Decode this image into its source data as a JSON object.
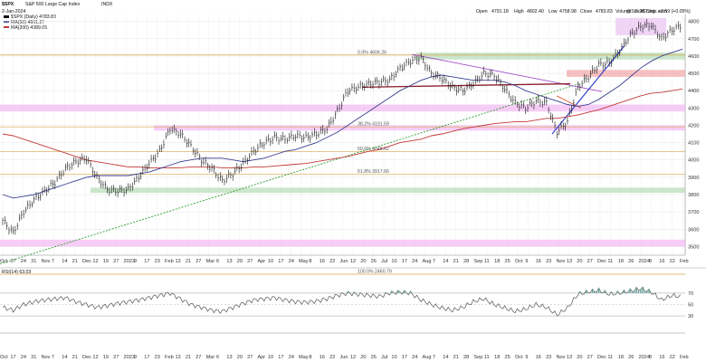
{
  "header": {
    "symbol": "$SPX",
    "name": "S&P 500 Large Cap Index",
    "exchange": "INDX",
    "date": "2-Jan-2024",
    "source": "@StockCharts.com",
    "ohlc": {
      "open_label": "Open",
      "open": "4791.18",
      "high_label": "High",
      "high": "4802.40",
      "low_label": "Low",
      "low": "4758.98",
      "close_label": "Close",
      "close": "4783.83",
      "volume_label": "Volume",
      "volume": "2.2B",
      "chg_label": "Chg",
      "chg": "+2.59 (+0.05%)"
    }
  },
  "legend": {
    "price": "$SPX (Daily) 4783.83",
    "ma50": "MA(50) 4601.27",
    "ma200": "MA(200) 4389.65",
    "rsi": "RSI(14) 63.03"
  },
  "colors": {
    "price": "#111111",
    "ma50": "#3a3f8f",
    "ma200": "#c23a3a",
    "trend": "#2f9e2f",
    "fib": "#d9a64a",
    "magenta_zone": "#f2b8f2",
    "green_zone": "#b7dcb7",
    "red_zone": "#f4a6a6",
    "resistance_purple": "#a04cc8",
    "resistance_maroon": "#8a1f2e",
    "breakout_blue": "#3344cc",
    "rsi_fill": "#6aa7a0"
  },
  "chart_data": {
    "type": "line",
    "title": "$SPX S&P 500 Large Cap Index INDX",
    "x_axis_labels": [
      "Oct",
      "17",
      "24",
      "31",
      "Nov",
      "7",
      "14",
      "21",
      "Dec",
      "12",
      "19",
      "27",
      "2023",
      "9",
      "17",
      "23",
      "Feb",
      "13",
      "21",
      "27",
      "Mar",
      "6",
      "13",
      "20",
      "27",
      "Apr",
      "10",
      "17",
      "24",
      "May",
      "8",
      "16",
      "22",
      "Jun",
      "12",
      "20",
      "26",
      "Jul",
      "10",
      "17",
      "24",
      "Aug",
      "7",
      "14",
      "21",
      "28",
      "Sep",
      "11",
      "18",
      "25",
      "Oct",
      "9",
      "16",
      "23",
      "Nov",
      "13",
      "20",
      "27",
      "Dec",
      "11",
      "18",
      "26",
      "2024",
      "8",
      "16",
      "22",
      "Feb"
    ],
    "ylim": [
      3450,
      4840
    ],
    "y_ticks": [
      {
        "value": 4800,
        "label": "4800"
      },
      {
        "value": 4700,
        "label": "4700"
      },
      {
        "value": 4600,
        "label": "4600"
      },
      {
        "value": 4500,
        "label": "4500"
      },
      {
        "value": 4400,
        "label": "4400"
      },
      {
        "value": 4300,
        "label": "4300"
      },
      {
        "value": 4200,
        "label": "4200"
      },
      {
        "value": 4100,
        "label": "4100"
      },
      {
        "value": 4000,
        "label": "4000"
      },
      {
        "value": 3900,
        "label": "3900"
      },
      {
        "value": 3800,
        "label": "3800"
      },
      {
        "value": 3700,
        "label": "3700"
      },
      {
        "value": 3600,
        "label": "3600"
      },
      {
        "value": 3500,
        "label": "3500"
      }
    ],
    "fib_levels": [
      {
        "value": 4606,
        "label": "0.0% 4606.26"
      },
      {
        "value": 4191,
        "label": "38.2% 4191.59"
      },
      {
        "value": 4048,
        "label": "50.0% 4048.62"
      },
      {
        "value": 3918,
        "label": "61.8% 3917.66"
      },
      {
        "value": 2460,
        "label": "100.0% 2460.79"
      }
    ],
    "series": [
      {
        "name": "$SPX (Daily) 4783.83",
        "values": [
          3650,
          3580,
          3700,
          3770,
          3820,
          3870,
          3950,
          3990,
          4010,
          3900,
          3830,
          3820,
          3830,
          3900,
          3980,
          4050,
          4180,
          4150,
          4080,
          4000,
          3950,
          3880,
          3920,
          3980,
          4050,
          4100,
          4130,
          4120,
          4140,
          4130,
          4150,
          4180,
          4280,
          4400,
          4420,
          4440,
          4450,
          4460,
          4530,
          4570,
          4590,
          4500,
          4470,
          4420,
          4400,
          4440,
          4500,
          4490,
          4410,
          4330,
          4300,
          4340,
          4330,
          4160,
          4220,
          4420,
          4480,
          4550,
          4560,
          4630,
          4720,
          4770,
          4780,
          4700,
          4750,
          4780
        ]
      },
      {
        "name": "MA(50) 4601.27",
        "values": [
          3800,
          3780,
          3790,
          3800,
          3820,
          3840,
          3860,
          3880,
          3900,
          3910,
          3910,
          3910,
          3910,
          3920,
          3930,
          3950,
          3970,
          3990,
          4000,
          4010,
          4010,
          4010,
          4000,
          3990,
          4000,
          4010,
          4030,
          4050,
          4060,
          4080,
          4100,
          4130,
          4160,
          4200,
          4240,
          4280,
          4320,
          4360,
          4400,
          4430,
          4460,
          4480,
          4490,
          4480,
          4470,
          4460,
          4460,
          4460,
          4450,
          4430,
          4400,
          4380,
          4360,
          4340,
          4320,
          4310,
          4320,
          4350,
          4390,
          4430,
          4480,
          4530,
          4570,
          4600,
          4620,
          4640
        ]
      },
      {
        "name": "MA(200) 4389.65",
        "values": [
          4150,
          4140,
          4120,
          4100,
          4080,
          4060,
          4040,
          4020,
          4000,
          3990,
          3980,
          3970,
          3960,
          3960,
          3955,
          3955,
          3955,
          3955,
          3960,
          3960,
          3960,
          3955,
          3955,
          3955,
          3960,
          3960,
          3965,
          3970,
          3975,
          3980,
          3990,
          4000,
          4010,
          4020,
          4035,
          4050,
          4060,
          4080,
          4100,
          4110,
          4120,
          4140,
          4150,
          4165,
          4180,
          4190,
          4200,
          4210,
          4215,
          4220,
          4220,
          4230,
          4240,
          4240,
          4250,
          4260,
          4275,
          4290,
          4310,
          4330,
          4350,
          4370,
          4385,
          4390,
          4400,
          4410
        ]
      }
    ],
    "rsi": {
      "name": "RSI(14) 63.03",
      "ylim": [
        0,
        100
      ],
      "levels": [
        70,
        50,
        30
      ],
      "values": [
        45,
        40,
        50,
        55,
        58,
        60,
        62,
        55,
        50,
        45,
        48,
        52,
        55,
        58,
        62,
        66,
        70,
        60,
        50,
        45,
        40,
        38,
        45,
        52,
        58,
        60,
        62,
        58,
        55,
        54,
        56,
        60,
        66,
        70,
        68,
        66,
        64,
        70,
        72,
        70,
        58,
        50,
        44,
        40,
        45,
        55,
        60,
        50,
        44,
        38,
        42,
        50,
        45,
        32,
        44,
        68,
        72,
        75,
        68,
        70,
        74,
        78,
        72,
        58,
        66,
        63
      ]
    },
    "annotations": [
      "0.0% 4606.26",
      "38.2% 4191.59",
      "50.0% 4048.62",
      "61.8% 3917.66",
      "100.0% 2460.79"
    ],
    "grid": true,
    "legend_position": "top-left"
  }
}
